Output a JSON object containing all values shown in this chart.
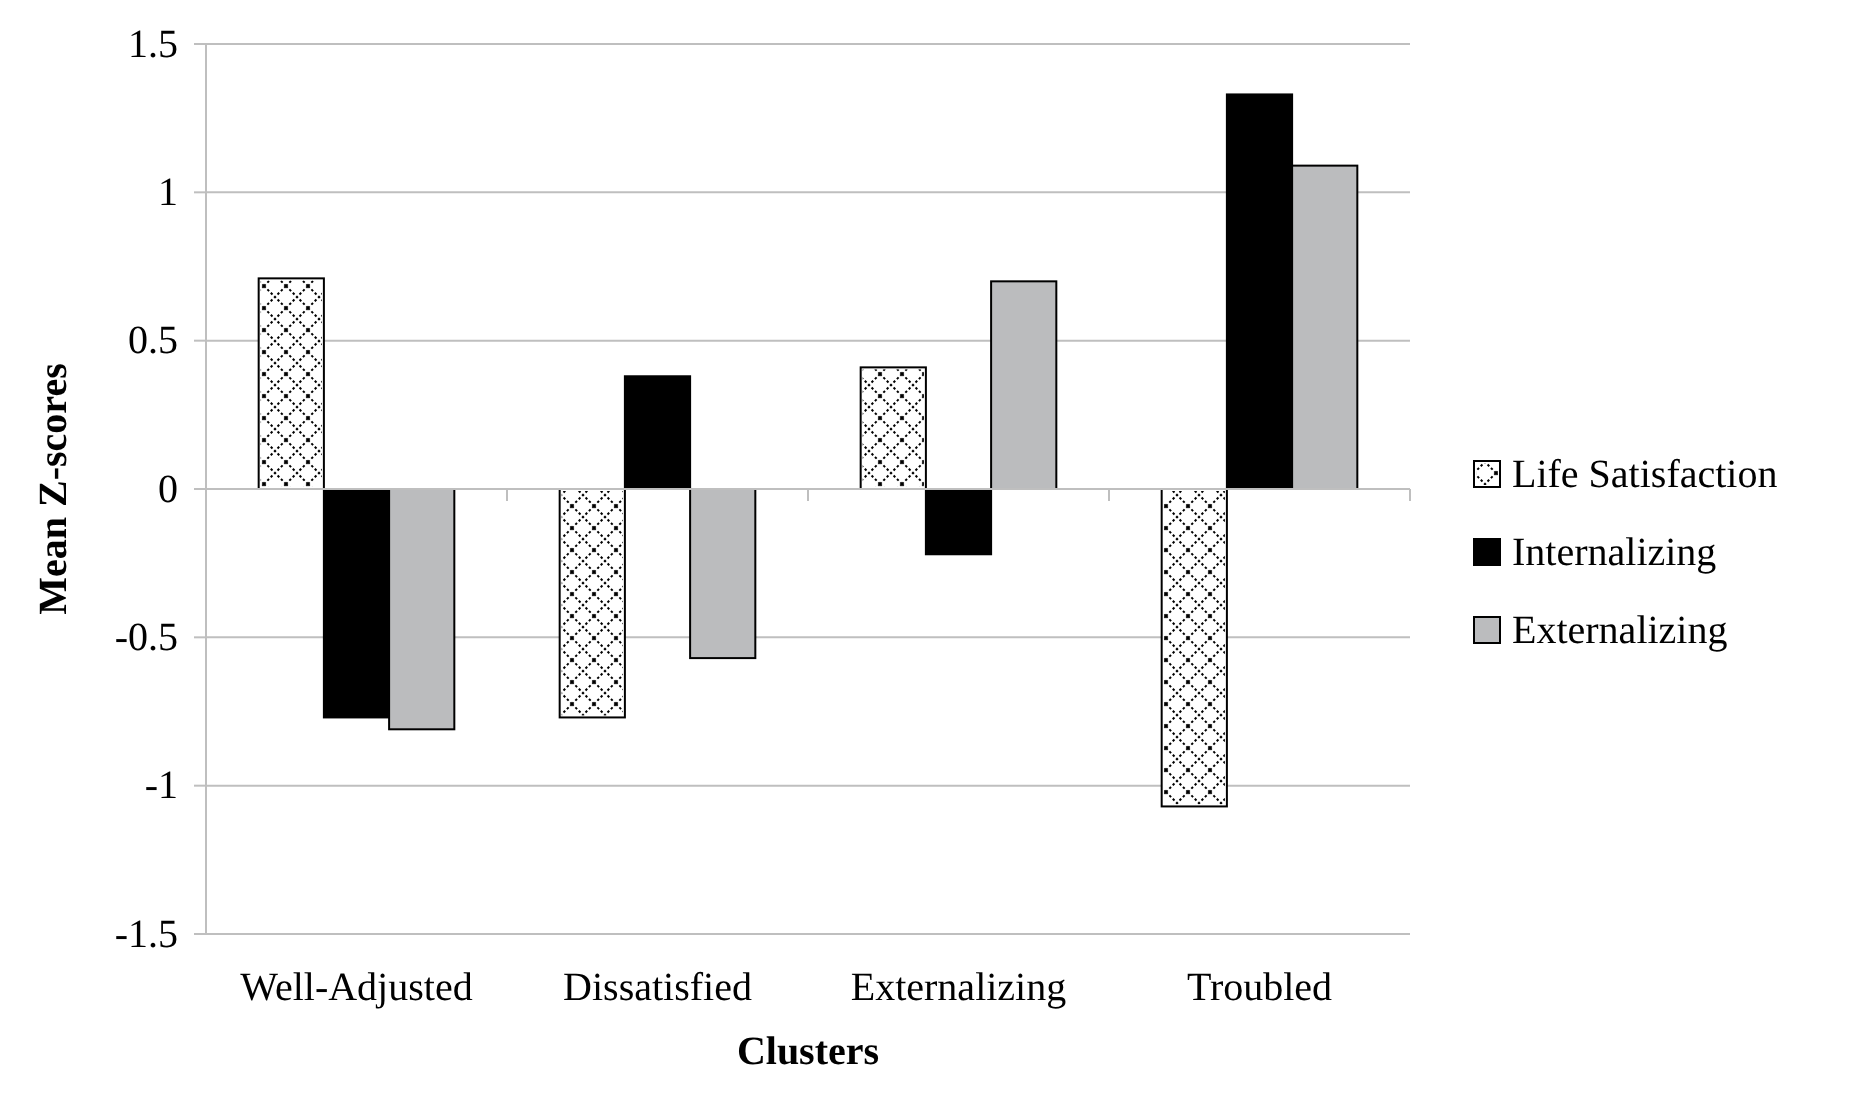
{
  "chart_data": {
    "type": "bar",
    "xlabel": "Clusters",
    "ylabel": "Mean Z-scores",
    "categories": [
      "Well-Adjusted",
      "Dissatisfied",
      "Externalizing",
      "Troubled"
    ],
    "series": [
      {
        "name": "Life Satisfaction",
        "color": "#ffffff",
        "values": [
          0.71,
          -0.77,
          0.41,
          -1.07
        ]
      },
      {
        "name": "Internalizing",
        "color": "#000000",
        "values": [
          -0.77,
          0.38,
          -0.22,
          1.33
        ]
      },
      {
        "name": "Externalizing",
        "color": "#bbbcbe",
        "values": [
          -0.81,
          -0.57,
          0.7,
          1.09
        ]
      }
    ],
    "ylim": [
      -1.5,
      1.5
    ],
    "yticks": [
      -1.5,
      -1,
      -0.5,
      0,
      0.5,
      1,
      1.5
    ],
    "grid": "y",
    "legend": "right"
  }
}
